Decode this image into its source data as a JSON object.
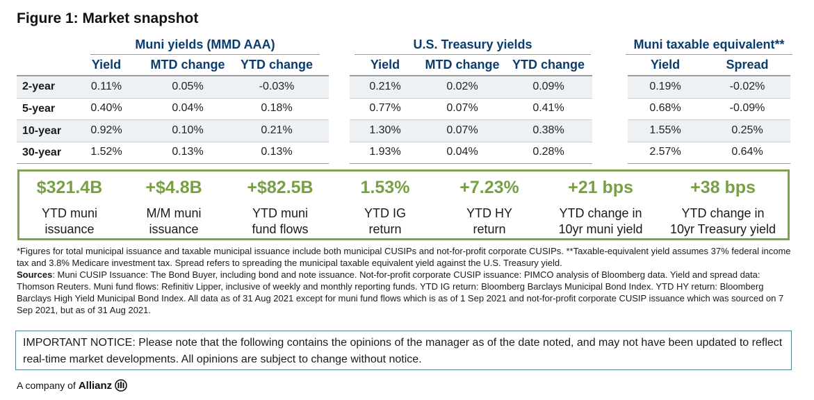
{
  "figure_title": "Figure 1: Market snapshot",
  "groups": {
    "muni": {
      "title": "Muni yields (MMD AAA)",
      "headers": [
        "Yield",
        "MTD change",
        "YTD change"
      ]
    },
    "treasury": {
      "title": "U.S. Treasury yields",
      "headers": [
        "Yield",
        "MTD change",
        "YTD change"
      ]
    },
    "taxable": {
      "title": "Muni taxable equivalent**",
      "headers": [
        "Yield",
        "Spread"
      ]
    }
  },
  "rows": [
    {
      "label": "2-year",
      "muni": [
        "0.11%",
        "0.05%",
        "-0.03%"
      ],
      "treasury": [
        "0.21%",
        "0.02%",
        "0.09%"
      ],
      "taxable": [
        "0.19%",
        "-0.02%"
      ]
    },
    {
      "label": "5-year",
      "muni": [
        "0.40%",
        "0.04%",
        "0.18%"
      ],
      "treasury": [
        "0.77%",
        "0.07%",
        "0.41%"
      ],
      "taxable": [
        "0.68%",
        "-0.09%"
      ]
    },
    {
      "label": "10-year",
      "muni": [
        "0.92%",
        "0.10%",
        "0.21%"
      ],
      "treasury": [
        "1.30%",
        "0.07%",
        "0.38%"
      ],
      "taxable": [
        "1.55%",
        "0.25%"
      ]
    },
    {
      "label": "30-year",
      "muni": [
        "1.52%",
        "0.13%",
        "0.13%"
      ],
      "treasury": [
        "1.93%",
        "0.04%",
        "0.28%"
      ],
      "taxable": [
        "2.57%",
        "0.64%"
      ]
    }
  ],
  "stats": [
    {
      "value": "$321.4B",
      "line1": "YTD muni",
      "line2": "issuance"
    },
    {
      "value": "+$4.8B",
      "line1": "M/M muni",
      "line2": "issuance"
    },
    {
      "value": "+$82.5B",
      "line1": "YTD muni",
      "line2": "fund flows"
    },
    {
      "value": "1.53%",
      "line1": "YTD IG",
      "line2": "return"
    },
    {
      "value": "+7.23%",
      "line1": "YTD HY",
      "line2": "return"
    },
    {
      "value": "+21 bps",
      "line1": "YTD change in",
      "line2": "10yr muni yield"
    },
    {
      "value": "+38 bps",
      "line1": "YTD change in",
      "line2": "10yr Treasury yield"
    }
  ],
  "footnote": {
    "note": "*Figures for total municipal issuance and taxable municipal issuance include both municipal CUSIPs and not-for-profit corporate CUSIPs. **Taxable-equivalent yield assumes 37% federal income tax and 3.8% Medicare investment tax. Spread refers to spreading the municipal taxable equivalent yield against the U.S. Treasury yield.",
    "sources_label": "Sources",
    "sources_text": ": Muni CUSIP Issuance: The Bond Buyer, including bond and note issuance. Not-for-profit corporate CUSIP issuance: PIMCO analysis of Bloomberg data. Yield and spread data: Thomson Reuters. Muni fund flows: Refinitiv Lipper, inclusive of weekly and monthly reporting funds. YTD IG return: Bloomberg Barclays Municipal Bond Index. YTD HY return: Bloomberg Barclays High Yield Municipal Bond Index. All data as of 31 Aug 2021 except for muni fund flows which is as of 1 Sep 2021 and not-for-profit corporate CUSIP issuance which was sourced on 7 Sep 2021, but as of 31 Aug 2021."
  },
  "notice": "IMPORTANT NOTICE: Please note that the following contains the opinions of the manager as of the date noted, and may not have been updated to reflect real-time market developments. All opinions are subject to change without notice.",
  "branding": {
    "prefix": "A company of",
    "brand": "Allianz",
    "logo_icon": "allianz-logo-icon"
  },
  "colors": {
    "header_blue": "#0b3c6e",
    "accent_green": "#77a043",
    "box_border_green": "#7ea24e",
    "notice_border": "#4a7f8f",
    "row_shade": "#eef1f4"
  }
}
